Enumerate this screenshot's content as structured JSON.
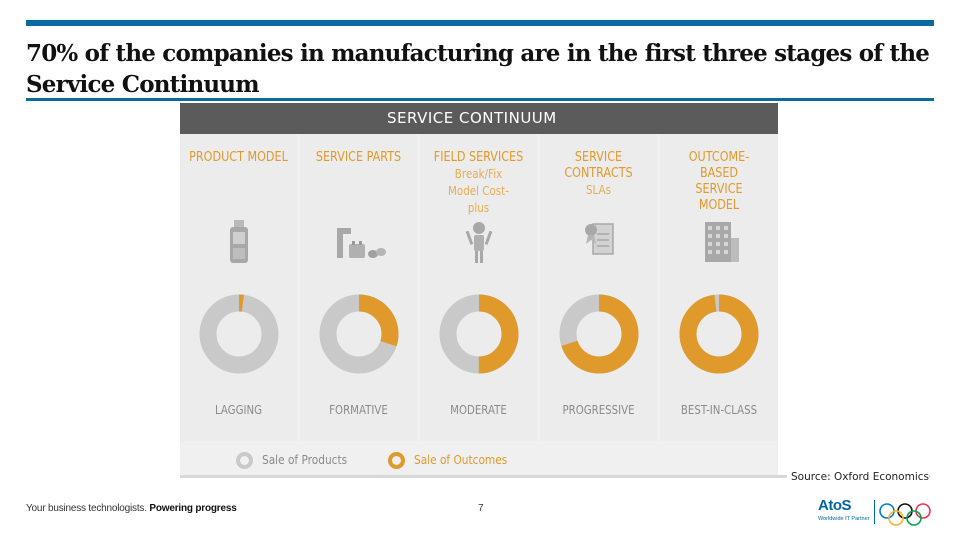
{
  "slide": {
    "title": "70% of the companies in manufacturing are in the first three stages of the Service Continuum",
    "source": "Source: Oxford Economics",
    "page_number": "7"
  },
  "infographic": {
    "header": "SERVICE CONTINUUM",
    "stages": [
      {
        "title": "PRODUCT MODEL",
        "subtitle": "",
        "label": "LAGGING",
        "outcome_share": 0.02,
        "icon": "phone-icon"
      },
      {
        "title": "SERVICE PARTS",
        "subtitle": "",
        "label": "FORMATIVE",
        "outcome_share": 0.3,
        "icon": "parts-icon"
      },
      {
        "title": "FIELD SERVICES",
        "subtitle": "Break/Fix Model Cost-plus",
        "label": "MODERATE",
        "outcome_share": 0.5,
        "icon": "technician-icon"
      },
      {
        "title": "SERVICE CONTRACTS",
        "subtitle": "SLAs",
        "label": "PROGRESSIVE",
        "outcome_share": 0.7,
        "icon": "certificate-icon"
      },
      {
        "title": "OUTCOME-BASED SERVICE MODEL",
        "subtitle": "",
        "label": "BEST-IN-CLASS",
        "outcome_share": 0.98,
        "icon": "building-icon"
      }
    ],
    "legend": {
      "products": "Sale of Products",
      "outcomes": "Sale of Outcomes"
    },
    "colors": {
      "outcomes": "#e09a2c",
      "products": "#c9c9c9",
      "header_bg": "#5b5b5b",
      "accent_blue": "#0a6aa1"
    }
  },
  "footer": {
    "tagline_plain": "Your business technologists.",
    "tagline_bold": "Powering progress",
    "brand": "AtoS",
    "brand_tagline": "Worldwide IT Partner"
  }
}
